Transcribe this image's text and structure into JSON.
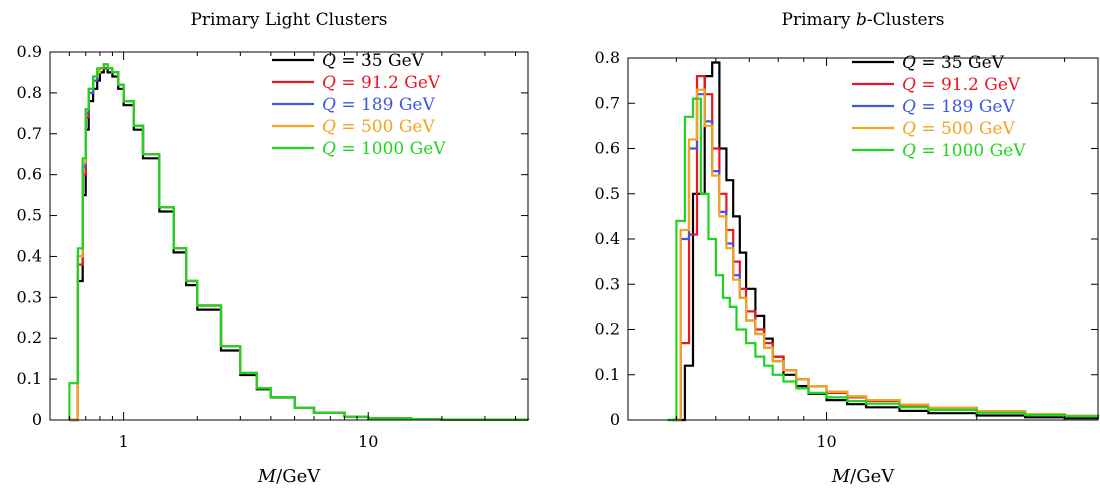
{
  "chart_data": [
    {
      "type": "line",
      "step": true,
      "title": "Primary Light Clusters",
      "xlabel": "M/GeV",
      "ylabel": "",
      "xscale": "log",
      "xlim": [
        0.5,
        45
      ],
      "ylim": [
        0,
        0.9
      ],
      "xticks": [
        1,
        10
      ],
      "yticks": [
        0,
        0.1,
        0.2,
        0.3,
        0.4,
        0.5,
        0.6,
        0.7,
        0.8,
        0.9
      ],
      "grid": false,
      "legend_position": "top-right",
      "series": [
        {
          "name": "Q = 35 GeV",
          "legend_prefix": "Q",
          "legend_value": " = 35 GeV",
          "color": "#000000",
          "x": [
            0.6,
            0.65,
            0.68,
            0.7,
            0.72,
            0.75,
            0.78,
            0.8,
            0.83,
            0.86,
            0.9,
            0.95,
            1.0,
            1.1,
            1.2,
            1.4,
            1.6,
            1.8,
            2.0,
            2.5,
            3.0,
            3.5,
            4.0,
            5.0,
            6.0,
            8.0,
            10.0,
            15.0,
            20.0,
            30.0,
            45.0
          ],
          "y": [
            0.0,
            0.34,
            0.55,
            0.71,
            0.78,
            0.81,
            0.83,
            0.85,
            0.86,
            0.85,
            0.84,
            0.81,
            0.77,
            0.71,
            0.64,
            0.51,
            0.41,
            0.33,
            0.27,
            0.17,
            0.11,
            0.075,
            0.055,
            0.03,
            0.018,
            0.008,
            0.004,
            0.002,
            0.001,
            0.0005,
            0.0
          ]
        },
        {
          "name": "Q = 91.2 GeV",
          "legend_prefix": "Q",
          "legend_value": " = 91.2 GeV",
          "color": "#e8171f",
          "x": [
            0.6,
            0.65,
            0.68,
            0.7,
            0.72,
            0.75,
            0.78,
            0.8,
            0.83,
            0.86,
            0.9,
            0.95,
            1.0,
            1.1,
            1.2,
            1.4,
            1.6,
            1.8,
            2.0,
            2.5,
            3.0,
            3.5,
            4.0,
            5.0,
            6.0,
            8.0,
            10.0,
            15.0,
            20.0,
            30.0,
            45.0
          ],
          "y": [
            0.0,
            0.38,
            0.6,
            0.74,
            0.8,
            0.83,
            0.85,
            0.86,
            0.86,
            0.86,
            0.85,
            0.82,
            0.78,
            0.72,
            0.65,
            0.52,
            0.42,
            0.34,
            0.28,
            0.18,
            0.115,
            0.078,
            0.056,
            0.03,
            0.018,
            0.008,
            0.004,
            0.002,
            0.001,
            0.0005,
            0.0
          ]
        },
        {
          "name": "Q = 189 GeV",
          "legend_prefix": "Q",
          "legend_value": " = 189 GeV",
          "color": "#3d55e0",
          "x": [
            0.6,
            0.65,
            0.68,
            0.7,
            0.72,
            0.75,
            0.78,
            0.8,
            0.83,
            0.86,
            0.9,
            0.95,
            1.0,
            1.1,
            1.2,
            1.4,
            1.6,
            1.8,
            2.0,
            2.5,
            3.0,
            3.5,
            4.0,
            5.0,
            6.0,
            8.0,
            10.0,
            15.0,
            20.0,
            30.0,
            45.0
          ],
          "y": [
            0.0,
            0.4,
            0.62,
            0.75,
            0.8,
            0.83,
            0.85,
            0.86,
            0.87,
            0.86,
            0.85,
            0.82,
            0.78,
            0.72,
            0.65,
            0.52,
            0.42,
            0.34,
            0.28,
            0.18,
            0.115,
            0.078,
            0.056,
            0.03,
            0.018,
            0.008,
            0.004,
            0.002,
            0.001,
            0.0005,
            0.0
          ]
        },
        {
          "name": "Q = 500 GeV",
          "legend_prefix": "Q",
          "legend_value": " = 500 GeV",
          "color": "#f5a21c",
          "x": [
            0.6,
            0.65,
            0.68,
            0.7,
            0.72,
            0.75,
            0.78,
            0.8,
            0.83,
            0.86,
            0.9,
            0.95,
            1.0,
            1.1,
            1.2,
            1.4,
            1.6,
            1.8,
            2.0,
            2.5,
            3.0,
            3.5,
            4.0,
            5.0,
            6.0,
            8.0,
            10.0,
            15.0,
            20.0,
            30.0,
            45.0
          ],
          "y": [
            0.0,
            0.4,
            0.63,
            0.76,
            0.81,
            0.84,
            0.85,
            0.86,
            0.87,
            0.86,
            0.85,
            0.82,
            0.78,
            0.72,
            0.65,
            0.52,
            0.42,
            0.34,
            0.28,
            0.18,
            0.115,
            0.078,
            0.056,
            0.03,
            0.018,
            0.008,
            0.004,
            0.002,
            0.001,
            0.0005,
            0.0
          ]
        },
        {
          "name": "Q = 1000 GeV",
          "legend_prefix": "Q",
          "legend_value": " = 1000 GeV",
          "color": "#1ed41e",
          "x": [
            0.6,
            0.65,
            0.68,
            0.7,
            0.72,
            0.75,
            0.78,
            0.8,
            0.83,
            0.86,
            0.9,
            0.95,
            1.0,
            1.1,
            1.2,
            1.4,
            1.6,
            1.8,
            2.0,
            2.5,
            3.0,
            3.5,
            4.0,
            5.0,
            6.0,
            8.0,
            10.0,
            15.0,
            20.0,
            30.0,
            45.0
          ],
          "y": [
            0.09,
            0.42,
            0.64,
            0.76,
            0.81,
            0.84,
            0.86,
            0.86,
            0.87,
            0.86,
            0.85,
            0.82,
            0.78,
            0.72,
            0.65,
            0.52,
            0.42,
            0.34,
            0.28,
            0.18,
            0.115,
            0.078,
            0.056,
            0.03,
            0.018,
            0.008,
            0.004,
            0.002,
            0.001,
            0.0005,
            0.0
          ]
        }
      ]
    },
    {
      "type": "line",
      "step": true,
      "title": "Primary b-Clusters",
      "title_prefix": "Primary ",
      "title_italic": "b",
      "title_suffix": "-Clusters",
      "xlabel": "M/GeV",
      "ylabel": "",
      "xscale": "log",
      "xlim": [
        4,
        35
      ],
      "ylim": [
        0,
        0.8
      ],
      "xticks": [
        10
      ],
      "yticks": [
        0,
        0.1,
        0.2,
        0.3,
        0.4,
        0.5,
        0.6,
        0.7,
        0.8
      ],
      "grid": false,
      "legend_position": "top-right",
      "series": [
        {
          "name": "Q = 35 GeV",
          "legend_prefix": "Q",
          "legend_value": " = 35 GeV",
          "color": "#000000",
          "x": [
            5.0,
            5.2,
            5.4,
            5.7,
            5.9,
            6.1,
            6.3,
            6.5,
            6.7,
            6.9,
            7.2,
            7.5,
            7.8,
            8.2,
            8.7,
            9.2,
            10.0,
            11.0,
            12.0,
            14.0,
            16.0,
            20.0,
            25.0,
            30.0,
            35.0
          ],
          "y": [
            0.0,
            0.12,
            0.5,
            0.76,
            0.79,
            0.6,
            0.53,
            0.45,
            0.37,
            0.29,
            0.23,
            0.18,
            0.14,
            0.1,
            0.075,
            0.058,
            0.044,
            0.035,
            0.028,
            0.02,
            0.015,
            0.01,
            0.006,
            0.004,
            0.003
          ]
        },
        {
          "name": "Q = 91.2 GeV",
          "legend_prefix": "Q",
          "legend_value": " = 91.2 GeV",
          "color": "#e8171f",
          "x": [
            4.9,
            5.1,
            5.3,
            5.5,
            5.7,
            5.9,
            6.1,
            6.3,
            6.5,
            6.7,
            6.9,
            7.2,
            7.5,
            7.8,
            8.2,
            8.7,
            9.2,
            10.0,
            11.0,
            12.0,
            14.0,
            16.0,
            20.0,
            25.0,
            30.0,
            35.0
          ],
          "y": [
            0.0,
            0.17,
            0.41,
            0.76,
            0.72,
            0.6,
            0.5,
            0.42,
            0.35,
            0.29,
            0.24,
            0.2,
            0.17,
            0.14,
            0.11,
            0.09,
            0.075,
            0.06,
            0.05,
            0.042,
            0.032,
            0.025,
            0.017,
            0.012,
            0.008,
            0.006
          ]
        },
        {
          "name": "Q = 189 GeV",
          "legend_prefix": "Q",
          "legend_value": " = 189 GeV",
          "color": "#3d55e0",
          "x": [
            4.9,
            5.1,
            5.3,
            5.5,
            5.7,
            5.9,
            6.1,
            6.3,
            6.5,
            6.7,
            6.9,
            7.2,
            7.5,
            7.8,
            8.2,
            8.7,
            9.2,
            10.0,
            11.0,
            12.0,
            14.0,
            16.0,
            20.0,
            25.0,
            30.0,
            35.0
          ],
          "y": [
            0.0,
            0.4,
            0.6,
            0.72,
            0.66,
            0.55,
            0.46,
            0.39,
            0.32,
            0.27,
            0.22,
            0.19,
            0.16,
            0.13,
            0.11,
            0.09,
            0.075,
            0.062,
            0.052,
            0.044,
            0.034,
            0.027,
            0.019,
            0.013,
            0.009,
            0.007
          ]
        },
        {
          "name": "Q = 500 GeV",
          "legend_prefix": "Q",
          "legend_value": " = 500 GeV",
          "color": "#f5a21c",
          "x": [
            4.9,
            5.1,
            5.3,
            5.5,
            5.7,
            5.9,
            6.1,
            6.3,
            6.5,
            6.7,
            6.9,
            7.2,
            7.5,
            7.8,
            8.2,
            8.7,
            9.2,
            10.0,
            11.0,
            12.0,
            14.0,
            16.0,
            20.0,
            25.0,
            30.0,
            35.0
          ],
          "y": [
            0.0,
            0.42,
            0.62,
            0.73,
            0.65,
            0.54,
            0.45,
            0.38,
            0.31,
            0.27,
            0.22,
            0.19,
            0.16,
            0.13,
            0.11,
            0.09,
            0.075,
            0.062,
            0.052,
            0.044,
            0.034,
            0.027,
            0.019,
            0.013,
            0.009,
            0.007
          ]
        },
        {
          "name": "Q = 1000 GeV",
          "legend_prefix": "Q",
          "legend_value": " = 1000 GeV",
          "color": "#1ed41e",
          "x": [
            4.8,
            5.0,
            5.2,
            5.4,
            5.6,
            5.8,
            6.0,
            6.2,
            6.4,
            6.6,
            6.9,
            7.2,
            7.5,
            7.8,
            8.2,
            8.7,
            9.2,
            10.0,
            11.0,
            12.0,
            14.0,
            16.0,
            20.0,
            25.0,
            30.0,
            35.0
          ],
          "y": [
            0.0,
            0.44,
            0.67,
            0.71,
            0.5,
            0.4,
            0.32,
            0.27,
            0.25,
            0.2,
            0.17,
            0.14,
            0.12,
            0.1,
            0.085,
            0.07,
            0.06,
            0.05,
            0.042,
            0.036,
            0.028,
            0.022,
            0.016,
            0.011,
            0.008,
            0.006
          ]
        }
      ]
    }
  ]
}
